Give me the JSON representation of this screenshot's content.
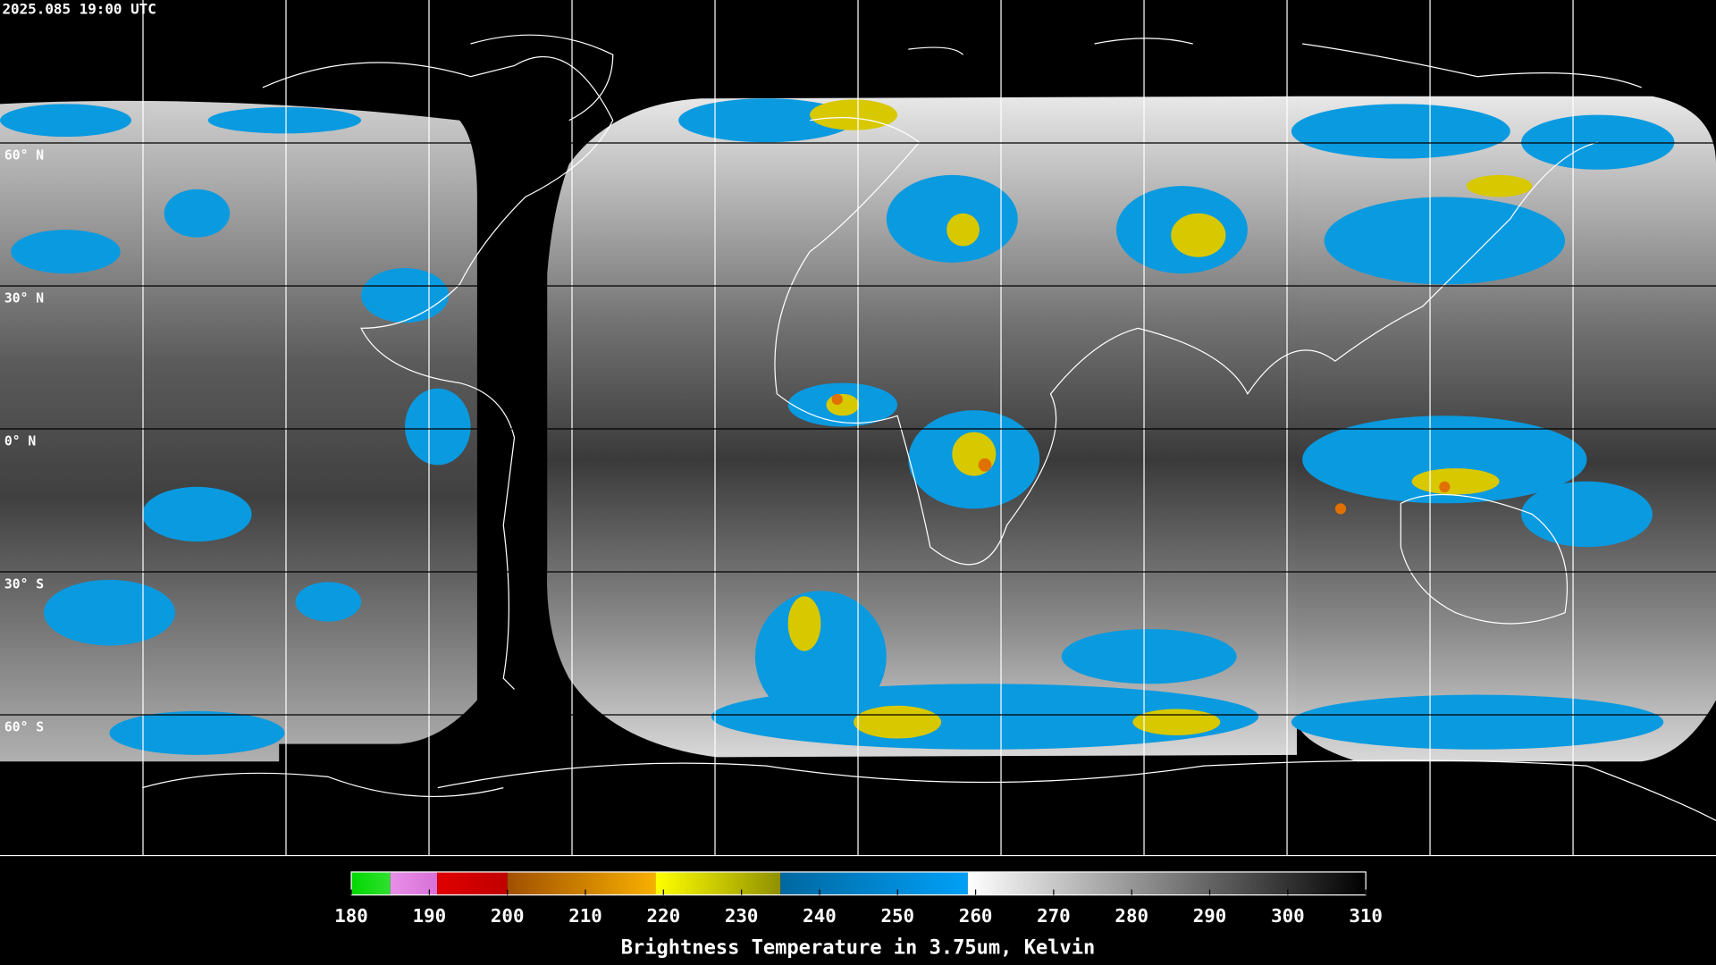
{
  "header": {
    "timestamp": "2025.085 19:00 UTC"
  },
  "map": {
    "latitude_labels": [
      "60° N",
      "30° N",
      "0° N",
      "30° S",
      "60° S"
    ]
  },
  "colorbar": {
    "label": "Brightness Temperature in 3.75um, Kelvin",
    "range": [
      180,
      310
    ],
    "ticks": [
      180,
      190,
      200,
      210,
      220,
      230,
      240,
      250,
      260,
      270,
      280,
      290,
      300,
      310
    ],
    "segments": [
      {
        "from": 180,
        "to": 185,
        "colors": [
          "#00d800",
          "#30e030"
        ]
      },
      {
        "from": 185,
        "to": 191,
        "colors": [
          "#e890e8",
          "#d870d8"
        ]
      },
      {
        "from": 191,
        "to": 200,
        "colors": [
          "#e00000",
          "#c00000"
        ]
      },
      {
        "from": 200,
        "to": 219,
        "colors": [
          "#a05000",
          "#f8b000"
        ]
      },
      {
        "from": 219,
        "to": 235,
        "colors": [
          "#ffff00",
          "#909000"
        ]
      },
      {
        "from": 235,
        "to": 259,
        "colors": [
          "#0068a0",
          "#00a0f8"
        ]
      },
      {
        "from": 259,
        "to": 310,
        "colors": [
          "#ffffff",
          "#000000"
        ]
      }
    ]
  }
}
